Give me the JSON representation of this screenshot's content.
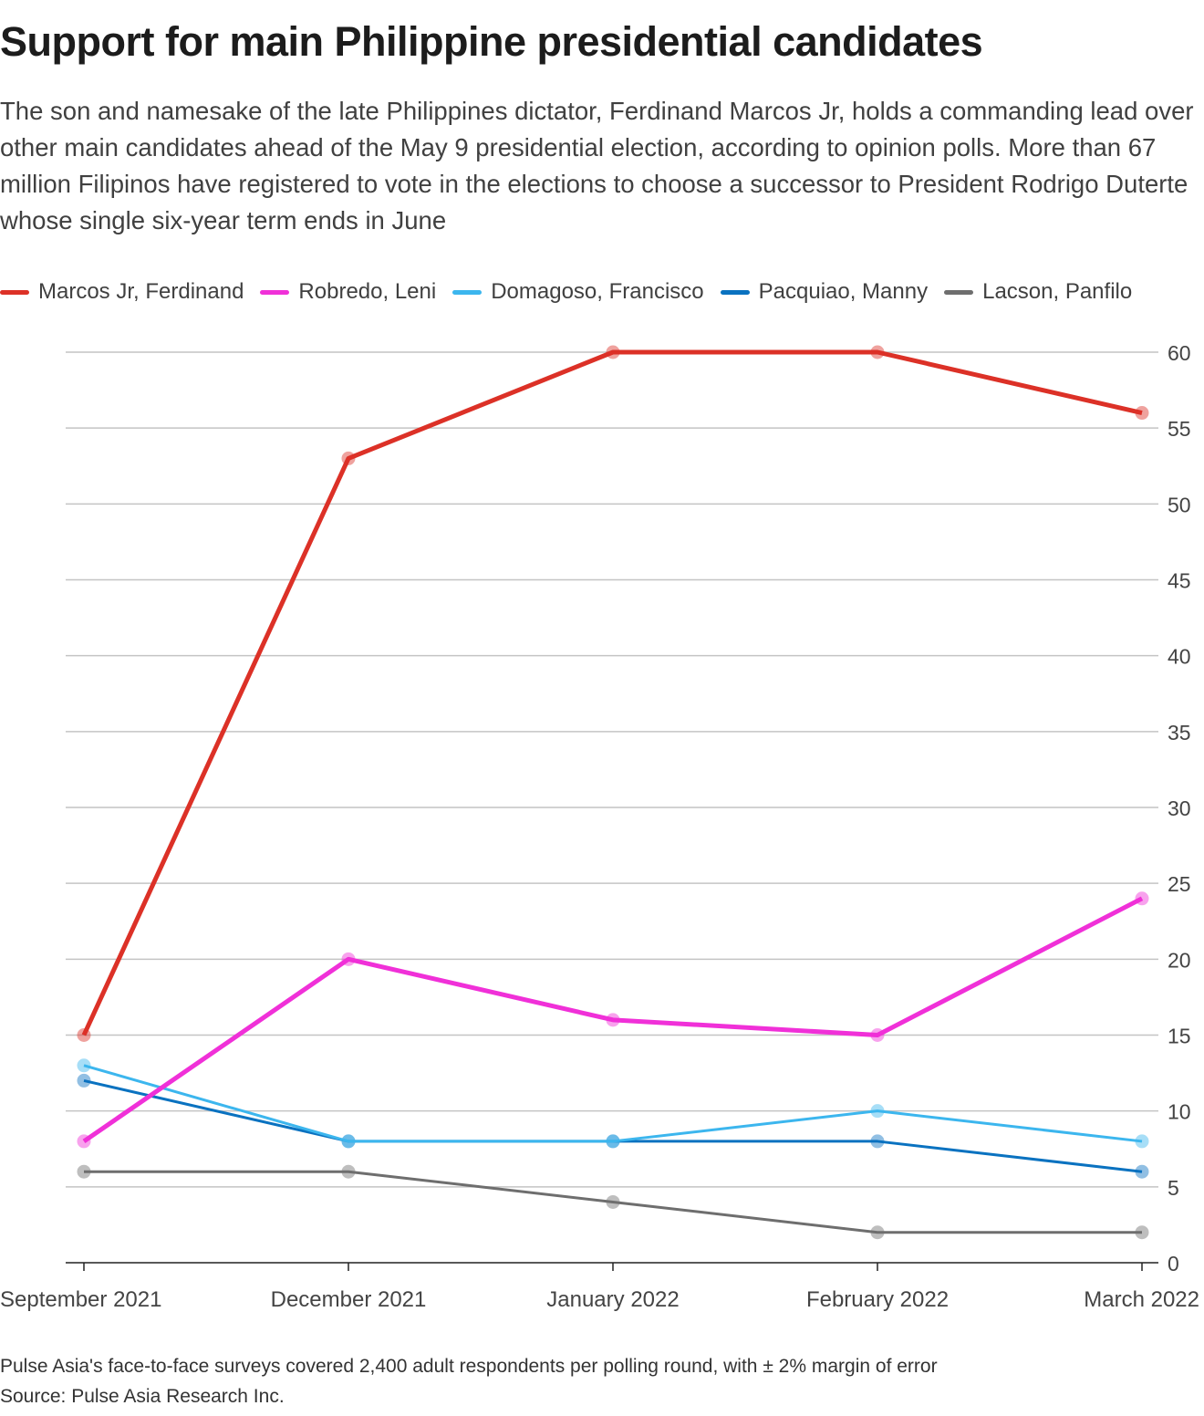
{
  "title": "Support for main Philippine presidential candidates",
  "subtitle": "The son and namesake of the late Philippines dictator, Ferdinand Marcos Jr, holds a commanding lead over other main candidates ahead of the May 9 presidential election, according to opinion polls. More than 67 million Filipinos have registered to vote in the elections to choose a successor to President Rodrigo Duterte whose single six-year term ends in June",
  "footnote": "Pulse Asia's face-to-face surveys covered 2,400 adult respondents per polling round, with ± 2% margin of error",
  "source": "Source: Pulse Asia Research Inc.",
  "chart_data": {
    "type": "line",
    "categories": [
      "September 2021",
      "December 2021",
      "January 2022",
      "February 2022",
      "March 2022"
    ],
    "ylim": [
      0,
      60
    ],
    "yticks": [
      "0",
      "5",
      "10",
      "15",
      "20",
      "25",
      "30",
      "35",
      "40",
      "45",
      "50",
      "55",
      "60"
    ],
    "grid": true,
    "legend_position": "top-left",
    "series": [
      {
        "name": "Marcos Jr, Ferdinand",
        "color": "#dc3127",
        "values": [
          15,
          53,
          60,
          60,
          56
        ]
      },
      {
        "name": "Robredo, Leni",
        "color": "#f030d8",
        "values": [
          8,
          20,
          16,
          15,
          24
        ]
      },
      {
        "name": "Domagoso, Francisco",
        "color": "#3cb6ee",
        "values": [
          13,
          8,
          8,
          10,
          8
        ]
      },
      {
        "name": "Pacquiao, Manny",
        "color": "#0a72c0",
        "values": [
          12,
          8,
          8,
          8,
          6
        ]
      },
      {
        "name": "Lacson, Panfilo",
        "color": "#6e6e6e",
        "values": [
          6,
          6,
          4,
          2,
          2
        ]
      }
    ]
  }
}
